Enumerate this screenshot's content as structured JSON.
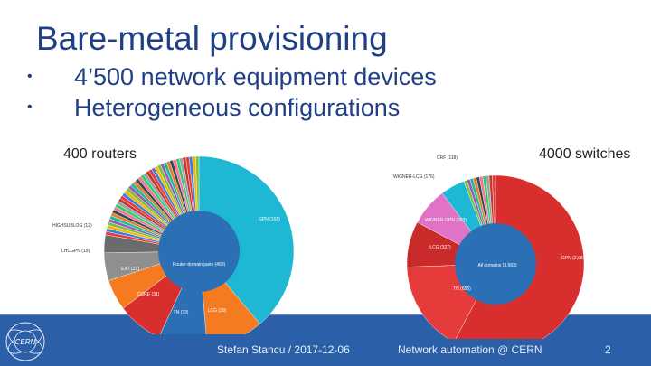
{
  "slide": {
    "title": "Bare-metal provisioning",
    "bullets": [
      "4’500 network equipment devices",
      "Heterogeneous configurations"
    ]
  },
  "charts": {
    "routers": {
      "heading": "400 routers",
      "center_label": "Router-domain pairs (400)",
      "labels": [
        "GPN (155)",
        "LCG (39)",
        "TN (33)",
        "CORE (31)",
        "EXT (21)",
        "LHCGPN (19)",
        "HIGHSUBLOG (12)"
      ]
    },
    "switches": {
      "heading": "4000 switches",
      "center_label": "All domains (3,993)",
      "labels": [
        "GPN (2,083)",
        "TN (655)",
        "LCG (327)",
        "WIGNER-GPN (283)",
        "WIGNER-LCG (176)",
        "CRF (118)"
      ]
    }
  },
  "footer": {
    "author": "Stefan Stancu / 2017-12-06",
    "topic": "Network automation @ CERN",
    "page": "2",
    "logo_text": "CERN"
  }
}
